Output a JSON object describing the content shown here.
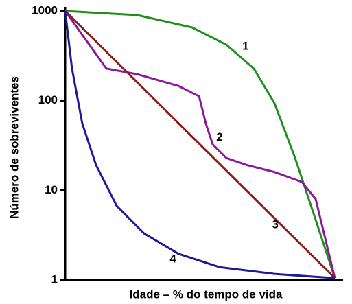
{
  "chart_data": {
    "type": "line",
    "xlabel": "Idade – % do tempo de vida",
    "ylabel": "Número de sobreviventes",
    "yscale": "log",
    "xlim": [
      0,
      100
    ],
    "ylim": [
      1,
      1000
    ],
    "yticks": [
      1,
      10,
      100,
      1000
    ],
    "series": [
      {
        "name": "1",
        "color": "#1f8f1f",
        "x": [
          0,
          26.6,
          46.8,
          59.5,
          69.6,
          77.2,
          84.8,
          92.4,
          99.5
        ],
        "values": [
          1000,
          900,
          655,
          420,
          228,
          94,
          23,
          4.7,
          1.05
        ]
      },
      {
        "name": "2",
        "color": "#8b1a9b",
        "x": [
          0,
          15.2,
          26.6,
          41.8,
          49.4,
          51.9,
          54.4,
          59.5,
          67.1,
          77.2,
          87.3,
          92.4,
          99.5
        ],
        "values": [
          1000,
          228,
          197,
          146,
          112,
          55.6,
          32.6,
          22.9,
          19.1,
          16,
          12.4,
          8,
          1.05
        ]
      },
      {
        "name": "3",
        "color": "#8b1a1a",
        "x": [
          0,
          99.5
        ],
        "values": [
          1000,
          1.05
        ]
      },
      {
        "name": "4",
        "color": "#1a1a9b",
        "x": [
          0,
          2.5,
          6.3,
          11.4,
          19,
          29.1,
          41.8,
          57,
          77.2,
          99.5
        ],
        "values": [
          1000,
          228,
          55.6,
          19.1,
          6.7,
          3.3,
          1.96,
          1.39,
          1.17,
          1.05
        ]
      }
    ]
  }
}
